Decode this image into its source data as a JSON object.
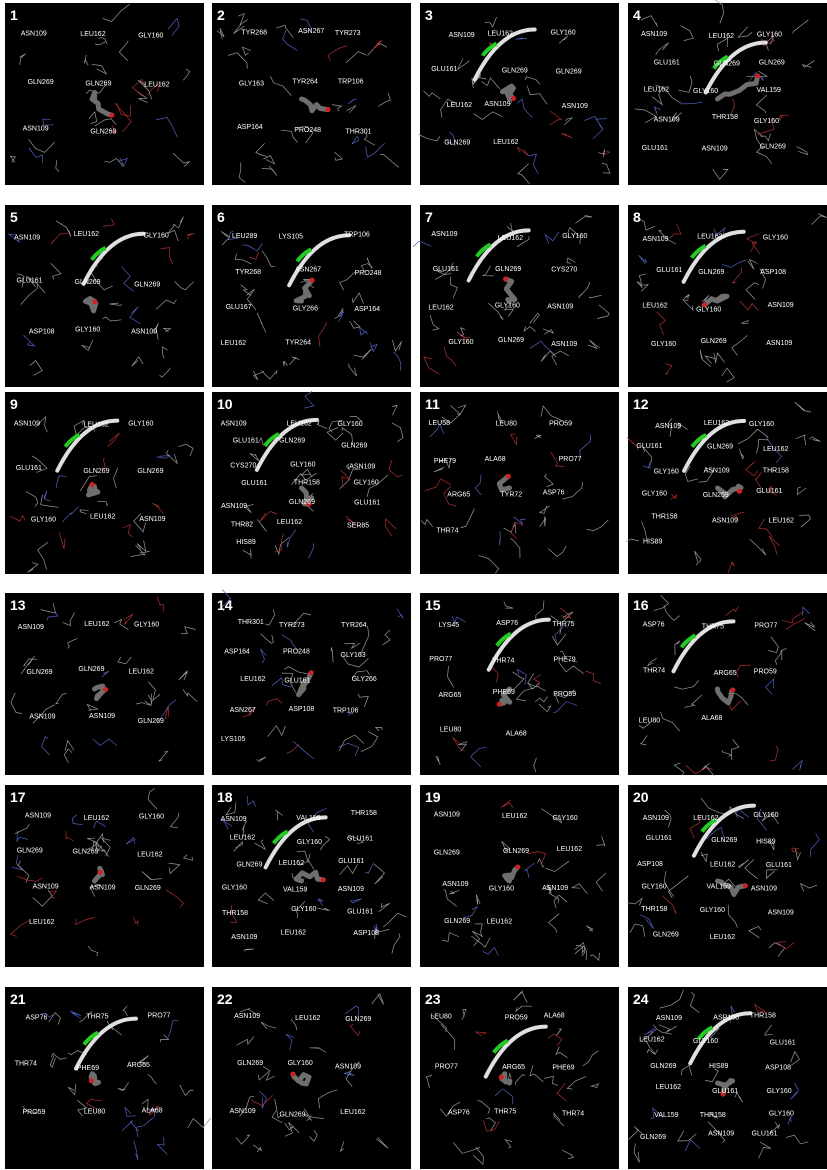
{
  "panels": [
    {
      "number": "1",
      "residues": [
        "ASN109",
        "LEU162",
        "GLY160",
        "GLN269",
        "GLN269",
        "LEU162",
        "ASN109",
        "GLN269"
      ]
    },
    {
      "number": "2",
      "residues": [
        "TYR268",
        "ASN267",
        "TYR273",
        "GLY163",
        "TYR264",
        "TRP106",
        "ASP164",
        "PRO248",
        "THR301"
      ]
    },
    {
      "number": "3",
      "residues": [
        "ASN109",
        "LEU162",
        "GLY160",
        "GLU161",
        "GLN269",
        "GLN269",
        "LEU162",
        "ASN109",
        "ASN109",
        "GLN269",
        "LEU162"
      ]
    },
    {
      "number": "4",
      "residues": [
        "ASN109",
        "LEU162",
        "GLY160",
        "GLU161",
        "GLN269",
        "GLN269",
        "LEU162",
        "GLY160",
        "VAL159",
        "ASN109",
        "THR158",
        "GLY160",
        "GLU161",
        "ASN109",
        "GLN269"
      ]
    },
    {
      "number": "5",
      "residues": [
        "ASN109",
        "LEU162",
        "GLY160",
        "GLU161",
        "GLN269",
        "GLN269",
        "ASP108",
        "GLY160",
        "ASN109"
      ]
    },
    {
      "number": "6",
      "residues": [
        "LEU289",
        "LYS105",
        "TRP106",
        "TYR268",
        "ASN267",
        "PRO248",
        "GLU167",
        "GLY266",
        "ASP164",
        "LEU162",
        "TYR264"
      ]
    },
    {
      "number": "7",
      "residues": [
        "ASN109",
        "LEU162",
        "GLY160",
        "GLU161",
        "GLN269",
        "CYS270",
        "LEU162",
        "GLY160",
        "ASN109",
        "GLY160",
        "GLN269",
        "ASN109"
      ]
    },
    {
      "number": "8",
      "residues": [
        "ASN109",
        "LEU162",
        "GLY160",
        "GLU161",
        "GLN269",
        "ASP108",
        "LEU162",
        "GLY160",
        "ASN109",
        "GLY160",
        "GLN269",
        "ASN109"
      ]
    },
    {
      "number": "9",
      "residues": [
        "ASN109",
        "LEU162",
        "GLY160",
        "GLU161",
        "GLN269",
        "GLN269",
        "GLY160",
        "LEU162",
        "ASN109"
      ]
    },
    {
      "number": "10",
      "residues": [
        "ASN109",
        "LEU162",
        "GLY160",
        "GLU161",
        "GLN269",
        "GLN269",
        "CYS270",
        "GLY160",
        "ASN109",
        "GLU161",
        "THR158",
        "GLY160",
        "ASN109",
        "GLN269",
        "GLU161",
        "THR82",
        "LEU162",
        "SER85",
        "HIS89"
      ]
    },
    {
      "number": "11",
      "residues": [
        "LEU58",
        "LEU80",
        "PRO59",
        "PHE79",
        "ALA68",
        "PRO77",
        "ARG65",
        "TYR72",
        "ASP76",
        "THR74"
      ]
    },
    {
      "number": "12",
      "residues": [
        "ASN109",
        "LEU162",
        "GLY160",
        "GLU161",
        "GLN269",
        "LEU162",
        "GLY160",
        "ASN109",
        "THR158",
        "GLY160",
        "GLN269",
        "GLU161",
        "THR158",
        "ASN109",
        "LEU162",
        "HIS89"
      ]
    },
    {
      "number": "13",
      "residues": [
        "ASN109",
        "LEU162",
        "GLY160",
        "GLN269",
        "GLN269",
        "LEU162",
        "ASN109",
        "ASN109",
        "GLN269"
      ]
    },
    {
      "number": "14",
      "residues": [
        "THR301",
        "TYR273",
        "TYR264",
        "ASP164",
        "PRO248",
        "GLY163",
        "LEU162",
        "GLU161",
        "GLY266",
        "ASN267",
        "ASP108",
        "TRP106",
        "LYS105"
      ]
    },
    {
      "number": "15",
      "residues": [
        "LYS45",
        "ASP76",
        "THR75",
        "PRO77",
        "THR74",
        "PHE79",
        "ARG65",
        "PHE69",
        "PRO59",
        "LEU80",
        "ALA68"
      ]
    },
    {
      "number": "16",
      "residues": [
        "ASP76",
        "THR75",
        "PRO77",
        "THR74",
        "ARG65",
        "PRO59",
        "LEU80",
        "ALA68"
      ]
    },
    {
      "number": "17",
      "residues": [
        "ASN109",
        "LEU162",
        "GLY160",
        "GLN269",
        "GLN269",
        "LEU162",
        "ASN109",
        "ASN109",
        "GLN269",
        "LEU162"
      ]
    },
    {
      "number": "18",
      "residues": [
        "ASN109",
        "VAL159",
        "THR158",
        "LEU162",
        "GLY160",
        "GLU161",
        "GLN269",
        "LEU162",
        "GLU161",
        "GLY160",
        "VAL159",
        "ASN109",
        "THR158",
        "GLY160",
        "GLU161",
        "ASN109",
        "LEU162",
        "ASP108"
      ]
    },
    {
      "number": "19",
      "residues": [
        "ASN109",
        "LEU162",
        "GLY160",
        "GLN269",
        "GLN269",
        "LEU162",
        "ASN109",
        "GLY160",
        "ASN109",
        "GLN269",
        "LEU162"
      ]
    },
    {
      "number": "20",
      "residues": [
        "ASN109",
        "LEU162",
        "GLY160",
        "GLU161",
        "GLN269",
        "HIS89",
        "ASP108",
        "LEU162",
        "GLU161",
        "GLY160",
        "VAL159",
        "ASN109",
        "THR158",
        "GLY160",
        "ASN109",
        "GLN269",
        "LEU162"
      ]
    },
    {
      "number": "21",
      "residues": [
        "ASP76",
        "THR75",
        "PRO77",
        "THR74",
        "PHE69",
        "ARG65",
        "PRO59",
        "LEU80",
        "ALA68"
      ]
    },
    {
      "number": "22",
      "residues": [
        "ASN109",
        "LEU162",
        "GLN269",
        "GLN269",
        "GLY160",
        "ASN109",
        "ASN109",
        "GLN269",
        "LEU162"
      ]
    },
    {
      "number": "23",
      "residues": [
        "LEU80",
        "PRO59",
        "ALA68",
        "PRO77",
        "ARG65",
        "PHE69",
        "ASP76",
        "THR75",
        "THR74"
      ]
    },
    {
      "number": "24",
      "residues": [
        "ASN109",
        "ASP108",
        "THR158",
        "LEU162",
        "GLY160",
        "GLU161",
        "GLN269",
        "HIS89",
        "ASP108",
        "LEU162",
        "GLU161",
        "GLY160",
        "VAL159",
        "THR158",
        "GLY160",
        "GLN269",
        "ASN109",
        "GLU161"
      ]
    }
  ]
}
